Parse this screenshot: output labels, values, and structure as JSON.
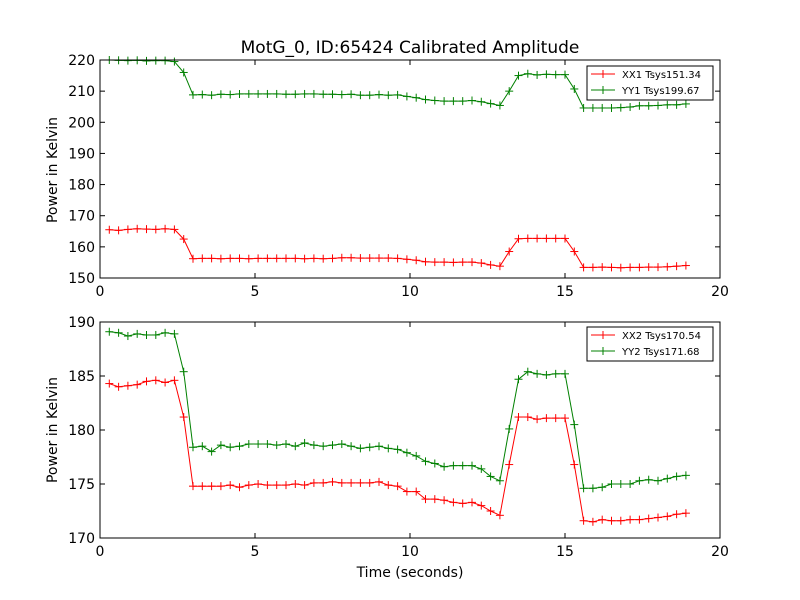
{
  "title": "MotG_0, ID:65424 Calibrated Amplitude",
  "chart_data": [
    {
      "type": "line",
      "ylabel": "Power in Kelvin",
      "xlabel": "",
      "xlim": [
        0,
        20
      ],
      "ylim": [
        150,
        220
      ],
      "xticks": [
        "0",
        "5",
        "10",
        "15",
        "20"
      ],
      "yticks": [
        "150",
        "160",
        "170",
        "180",
        "190",
        "200",
        "210",
        "220"
      ],
      "grid": false,
      "legend_position": "top-right",
      "series": [
        {
          "name": "XX1 Tsys151.34",
          "color": "#ff0000",
          "x": [
            0.3,
            0.6,
            0.9,
            1.2,
            1.5,
            1.8,
            2.1,
            2.4,
            2.7,
            3.0,
            3.3,
            3.6,
            3.9,
            4.2,
            4.5,
            4.8,
            5.1,
            5.4,
            5.7,
            6.0,
            6.3,
            6.6,
            6.9,
            7.2,
            7.5,
            7.8,
            8.1,
            8.4,
            8.7,
            9.0,
            9.3,
            9.6,
            9.9,
            10.2,
            10.5,
            10.8,
            11.1,
            11.4,
            11.7,
            12.0,
            12.3,
            12.6,
            12.9,
            13.2,
            13.5,
            13.8,
            14.1,
            14.4,
            14.7,
            15.0,
            15.3,
            15.6,
            15.9,
            16.2,
            16.5,
            16.8,
            17.1,
            17.4,
            17.7,
            18.0,
            18.3,
            18.6,
            18.9
          ],
          "values": [
            165.5,
            165.3,
            165.6,
            165.8,
            165.7,
            165.6,
            165.8,
            165.6,
            162.5,
            156.2,
            156.3,
            156.3,
            156.2,
            156.3,
            156.3,
            156.2,
            156.3,
            156.3,
            156.3,
            156.3,
            156.3,
            156.2,
            156.3,
            156.2,
            156.3,
            156.5,
            156.5,
            156.4,
            156.4,
            156.4,
            156.4,
            156.3,
            156.0,
            155.7,
            155.2,
            155.1,
            155.1,
            155.0,
            155.1,
            155.1,
            154.8,
            154.2,
            153.8,
            158.5,
            162.6,
            162.7,
            162.7,
            162.7,
            162.7,
            162.7,
            158.5,
            153.4,
            153.4,
            153.5,
            153.4,
            153.3,
            153.4,
            153.4,
            153.5,
            153.5,
            153.6,
            153.8,
            154.0
          ]
        },
        {
          "name": "YY1 Tsys199.67",
          "color": "#008000",
          "x": [
            0.3,
            0.6,
            0.9,
            1.2,
            1.5,
            1.8,
            2.1,
            2.4,
            2.7,
            3.0,
            3.3,
            3.6,
            3.9,
            4.2,
            4.5,
            4.8,
            5.1,
            5.4,
            5.7,
            6.0,
            6.3,
            6.6,
            6.9,
            7.2,
            7.5,
            7.8,
            8.1,
            8.4,
            8.7,
            9.0,
            9.3,
            9.6,
            9.9,
            10.2,
            10.5,
            10.8,
            11.1,
            11.4,
            11.7,
            12.0,
            12.3,
            12.6,
            12.9,
            13.2,
            13.5,
            13.8,
            14.1,
            14.4,
            14.7,
            15.0,
            15.3,
            15.6,
            15.9,
            16.2,
            16.5,
            16.8,
            17.1,
            17.4,
            17.7,
            18.0,
            18.3,
            18.6,
            18.9
          ],
          "values": [
            220.0,
            219.9,
            219.8,
            219.9,
            219.7,
            219.8,
            219.8,
            219.5,
            216.0,
            208.8,
            208.9,
            208.7,
            209.0,
            208.9,
            209.1,
            209.1,
            209.1,
            209.1,
            209.1,
            209.0,
            209.0,
            209.1,
            209.1,
            209.0,
            209.0,
            208.9,
            209.0,
            208.7,
            208.7,
            208.9,
            208.7,
            208.8,
            208.3,
            207.9,
            207.3,
            207.0,
            206.8,
            206.8,
            206.8,
            207.0,
            206.6,
            206.0,
            205.4,
            210.0,
            215.0,
            215.6,
            215.2,
            215.4,
            215.3,
            215.3,
            210.7,
            204.6,
            204.6,
            204.6,
            204.6,
            204.7,
            204.9,
            205.3,
            205.3,
            205.4,
            205.6,
            205.6,
            205.9
          ]
        }
      ]
    },
    {
      "type": "line",
      "ylabel": "Power in Kelvin",
      "xlabel": "Time (seconds)",
      "xlim": [
        0,
        20
      ],
      "ylim": [
        170,
        190
      ],
      "xticks": [
        "0",
        "5",
        "10",
        "15",
        "20"
      ],
      "yticks": [
        "170",
        "175",
        "180",
        "185",
        "190"
      ],
      "grid": false,
      "legend_position": "top-right",
      "series": [
        {
          "name": "XX2 Tsys170.54",
          "color": "#ff0000",
          "x": [
            0.3,
            0.6,
            0.9,
            1.2,
            1.5,
            1.8,
            2.1,
            2.4,
            2.7,
            3.0,
            3.3,
            3.6,
            3.9,
            4.2,
            4.5,
            4.8,
            5.1,
            5.4,
            5.7,
            6.0,
            6.3,
            6.6,
            6.9,
            7.2,
            7.5,
            7.8,
            8.1,
            8.4,
            8.7,
            9.0,
            9.3,
            9.6,
            9.9,
            10.2,
            10.5,
            10.8,
            11.1,
            11.4,
            11.7,
            12.0,
            12.3,
            12.6,
            12.9,
            13.2,
            13.5,
            13.8,
            14.1,
            14.4,
            14.7,
            15.0,
            15.3,
            15.6,
            15.9,
            16.2,
            16.5,
            16.8,
            17.1,
            17.4,
            17.7,
            18.0,
            18.3,
            18.6,
            18.9
          ],
          "values": [
            184.3,
            184.0,
            184.1,
            184.2,
            184.5,
            184.6,
            184.4,
            184.6,
            181.2,
            174.8,
            174.8,
            174.8,
            174.8,
            174.9,
            174.7,
            174.9,
            175.0,
            174.9,
            174.9,
            174.9,
            175.0,
            174.9,
            175.1,
            175.1,
            175.2,
            175.1,
            175.1,
            175.1,
            175.1,
            175.2,
            174.9,
            174.8,
            174.3,
            174.3,
            173.6,
            173.6,
            173.5,
            173.3,
            173.2,
            173.3,
            173.0,
            172.5,
            172.1,
            176.8,
            181.2,
            181.2,
            181.0,
            181.1,
            181.1,
            181.1,
            176.8,
            171.6,
            171.5,
            171.7,
            171.6,
            171.6,
            171.7,
            171.7,
            171.8,
            171.9,
            172.0,
            172.2,
            172.3
          ]
        },
        {
          "name": "YY2 Tsys171.68",
          "color": "#008000",
          "x": [
            0.3,
            0.6,
            0.9,
            1.2,
            1.5,
            1.8,
            2.1,
            2.4,
            2.7,
            3.0,
            3.3,
            3.6,
            3.9,
            4.2,
            4.5,
            4.8,
            5.1,
            5.4,
            5.7,
            6.0,
            6.3,
            6.6,
            6.9,
            7.2,
            7.5,
            7.8,
            8.1,
            8.4,
            8.7,
            9.0,
            9.3,
            9.6,
            9.9,
            10.2,
            10.5,
            10.8,
            11.1,
            11.4,
            11.7,
            12.0,
            12.3,
            12.6,
            12.9,
            13.2,
            13.5,
            13.8,
            14.1,
            14.4,
            14.7,
            15.0,
            15.3,
            15.6,
            15.9,
            16.2,
            16.5,
            16.8,
            17.1,
            17.4,
            17.7,
            18.0,
            18.3,
            18.6,
            18.9
          ],
          "values": [
            189.1,
            189.0,
            188.7,
            188.9,
            188.8,
            188.8,
            189.0,
            188.9,
            185.4,
            178.4,
            178.5,
            178.0,
            178.6,
            178.4,
            178.5,
            178.7,
            178.7,
            178.7,
            178.6,
            178.7,
            178.5,
            178.8,
            178.6,
            178.5,
            178.6,
            178.7,
            178.5,
            178.3,
            178.4,
            178.5,
            178.3,
            178.2,
            177.9,
            177.6,
            177.1,
            176.9,
            176.6,
            176.7,
            176.7,
            176.7,
            176.4,
            175.7,
            175.3,
            180.1,
            184.7,
            185.4,
            185.2,
            185.1,
            185.2,
            185.2,
            180.5,
            174.6,
            174.6,
            174.7,
            175.0,
            175.0,
            175.0,
            175.3,
            175.4,
            175.3,
            175.5,
            175.7,
            175.8
          ]
        }
      ]
    }
  ]
}
